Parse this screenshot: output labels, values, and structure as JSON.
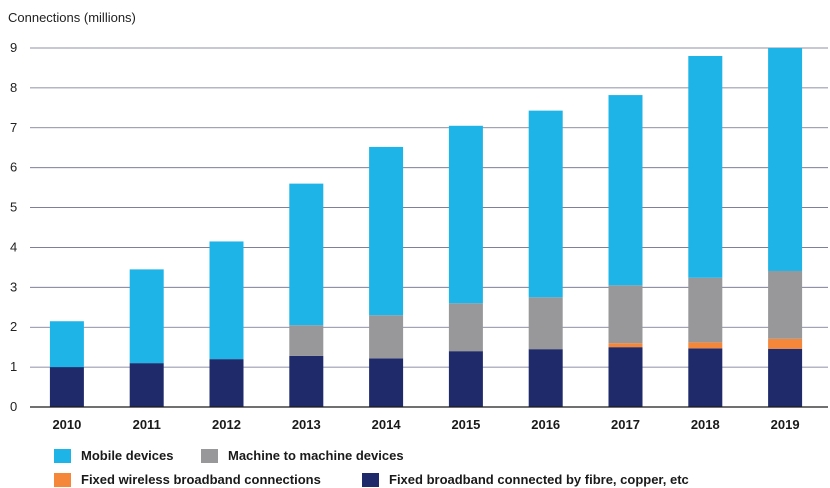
{
  "chart_data": {
    "type": "bar",
    "stacked": true,
    "title": "",
    "ylabel": "Connections (millions)",
    "xlabel": "",
    "ylim": [
      0,
      9
    ],
    "yticks": [
      "0",
      "1",
      "2",
      "3",
      "4",
      "5",
      "6",
      "7",
      "8",
      "9"
    ],
    "grid": true,
    "legend_position": "bottom",
    "categories": [
      "2010",
      "2011",
      "2012",
      "2013",
      "2014",
      "2015",
      "2016",
      "2017",
      "2018",
      "2019"
    ],
    "series": [
      {
        "name": "Fixed broadband connected by fibre, copper, etc",
        "color": "#1f2a6b",
        "values": [
          1.0,
          1.1,
          1.2,
          1.28,
          1.22,
          1.4,
          1.45,
          1.5,
          1.47,
          1.46
        ]
      },
      {
        "name": "Fixed wireless broadband connections",
        "color": "#f5873a",
        "values": [
          0,
          0,
          0,
          0,
          0,
          0,
          0,
          0.1,
          0.15,
          0.25
        ]
      },
      {
        "name": "Machine to machine devices",
        "color": "#98989b",
        "values": [
          0,
          0,
          0,
          0.77,
          1.08,
          1.2,
          1.3,
          1.45,
          1.62,
          1.7
        ]
      },
      {
        "name": "Mobile devices",
        "color": "#1fb4e8",
        "values": [
          1.15,
          2.35,
          2.95,
          3.55,
          4.22,
          4.45,
          4.68,
          4.77,
          5.56,
          5.59
        ]
      }
    ]
  },
  "legend": [
    {
      "label": "Mobile devices",
      "color": "#1fb4e8"
    },
    {
      "label": "Machine to machine devices",
      "color": "#98989b"
    },
    {
      "label": "Fixed wireless broadband connections",
      "color": "#f5873a"
    },
    {
      "label": "Fixed broadband connected by fibre, copper, etc",
      "color": "#1f2a6b"
    }
  ]
}
